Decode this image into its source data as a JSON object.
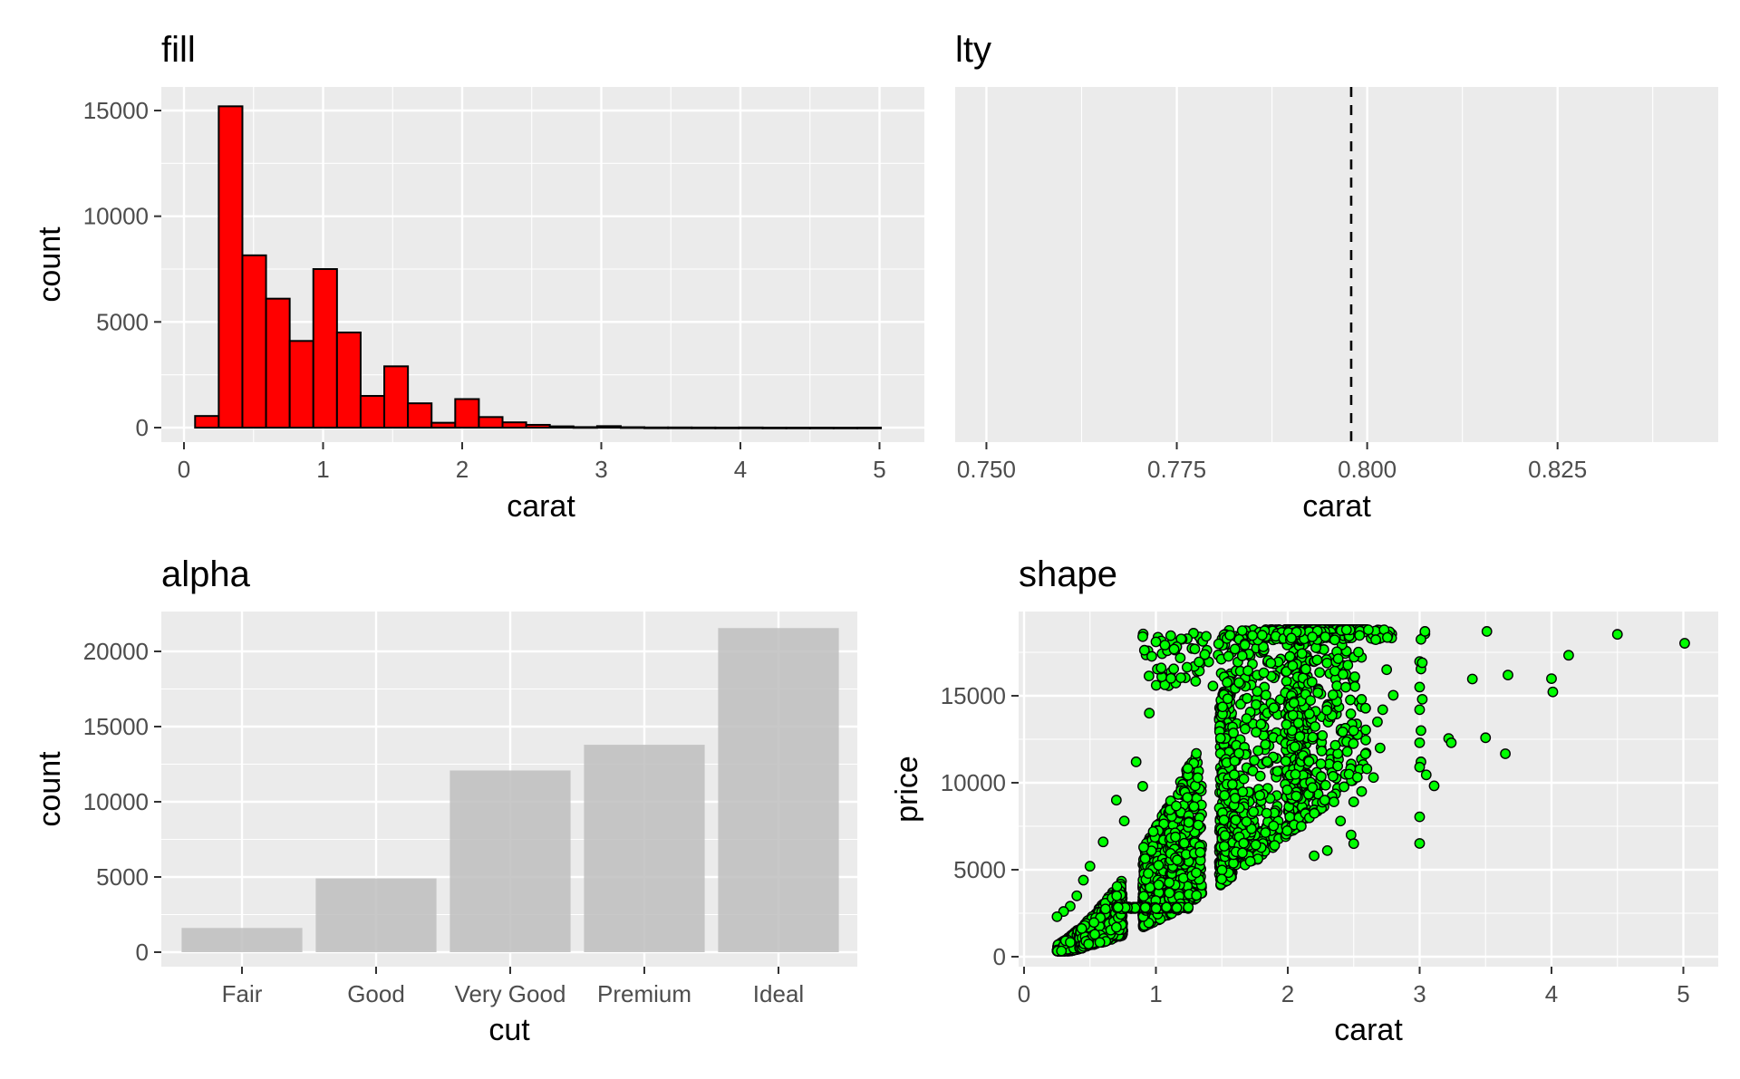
{
  "chart_data": [
    {
      "type": "bar",
      "title": "fill",
      "xlabel": "carat",
      "ylabel": "count",
      "xlim": [
        0,
        5.1
      ],
      "ylim": [
        0,
        15500
      ],
      "xticks": [
        "0",
        "1",
        "2",
        "3",
        "4",
        "5"
      ],
      "yticks": [
        "0",
        "5000",
        "10000",
        "15000"
      ],
      "grid": true,
      "bar_fill": "#ff0000",
      "bar_outline": "#000000",
      "bins": [
        {
          "x0": 0.08,
          "x1": 0.25,
          "count": 550
        },
        {
          "x0": 0.25,
          "x1": 0.42,
          "count": 15200
        },
        {
          "x0": 0.42,
          "x1": 0.59,
          "count": 8150
        },
        {
          "x0": 0.59,
          "x1": 0.76,
          "count": 6100
        },
        {
          "x0": 0.76,
          "x1": 0.93,
          "count": 4100
        },
        {
          "x0": 0.93,
          "x1": 1.1,
          "count": 7500
        },
        {
          "x0": 1.1,
          "x1": 1.27,
          "count": 4500
        },
        {
          "x0": 1.27,
          "x1": 1.44,
          "count": 1500
        },
        {
          "x0": 1.44,
          "x1": 1.61,
          "count": 2900
        },
        {
          "x0": 1.61,
          "x1": 1.78,
          "count": 1150
        },
        {
          "x0": 1.78,
          "x1": 1.95,
          "count": 230
        },
        {
          "x0": 1.95,
          "x1": 2.12,
          "count": 1350
        },
        {
          "x0": 2.12,
          "x1": 2.29,
          "count": 500
        },
        {
          "x0": 2.29,
          "x1": 2.46,
          "count": 250
        },
        {
          "x0": 2.46,
          "x1": 2.63,
          "count": 130
        },
        {
          "x0": 2.63,
          "x1": 2.8,
          "count": 60
        },
        {
          "x0": 2.8,
          "x1": 2.97,
          "count": 25
        },
        {
          "x0": 2.97,
          "x1": 3.14,
          "count": 70
        },
        {
          "x0": 3.14,
          "x1": 3.31,
          "count": 20
        },
        {
          "x0": 3.31,
          "x1": 3.48,
          "count": 8
        },
        {
          "x0": 3.48,
          "x1": 3.65,
          "count": 8
        },
        {
          "x0": 3.65,
          "x1": 3.82,
          "count": 5
        },
        {
          "x0": 3.82,
          "x1": 3.99,
          "count": 3
        },
        {
          "x0": 3.99,
          "x1": 4.16,
          "count": 6
        },
        {
          "x0": 4.16,
          "x1": 4.33,
          "count": 1
        },
        {
          "x0": 4.33,
          "x1": 4.5,
          "count": 1
        },
        {
          "x0": 4.5,
          "x1": 4.67,
          "count": 1
        },
        {
          "x0": 4.67,
          "x1": 4.84,
          "count": 0
        },
        {
          "x0": 4.84,
          "x1": 5.01,
          "count": 1
        }
      ]
    },
    {
      "type": "line",
      "title": "lty",
      "xlabel": "carat",
      "ylabel": "",
      "xlim": [
        0.7459,
        0.8461
      ],
      "xticks": [
        "0.750",
        "0.775",
        "0.800",
        "0.825"
      ],
      "grid": true,
      "vline": {
        "x": 0.7979,
        "linetype": "dashed",
        "color": "#000000"
      }
    },
    {
      "type": "bar",
      "title": "alpha",
      "xlabel": "cut",
      "ylabel": "count",
      "categories": [
        "Fair",
        "Good",
        "Very Good",
        "Premium",
        "Ideal"
      ],
      "values": [
        1610,
        4906,
        12082,
        13791,
        21551
      ],
      "ylim": [
        0,
        22630
      ],
      "yticks": [
        "0",
        "5000",
        "10000",
        "15000",
        "20000"
      ],
      "grid": true,
      "bar_fill": "#bebebe",
      "bar_alpha": 0.85
    },
    {
      "type": "scatter",
      "title": "shape",
      "xlabel": "carat",
      "ylabel": "price",
      "xlim": [
        0,
        5.2
      ],
      "ylim": [
        0,
        19600
      ],
      "xticks": [
        "0",
        "1",
        "2",
        "3",
        "4",
        "5"
      ],
      "yticks": [
        "0",
        "5000",
        "10000",
        "15000"
      ],
      "grid": true,
      "point_fill": "#00ff00",
      "point_outline": "#000000",
      "outliers": [
        [
          5.01,
          18018
        ],
        [
          4.5,
          18531
        ],
        [
          4.13,
          17329
        ],
        [
          4.01,
          15223
        ],
        [
          4.0,
          15984
        ],
        [
          3.67,
          16193
        ],
        [
          3.65,
          11668
        ],
        [
          3.51,
          18701
        ],
        [
          3.5,
          12587
        ],
        [
          3.4,
          15964
        ],
        [
          3.22,
          12545
        ],
        [
          3.24,
          12300
        ],
        [
          3.11,
          9823
        ],
        [
          3.04,
          18559
        ],
        [
          3.01,
          18242
        ],
        [
          3.0,
          16970
        ],
        [
          3.01,
          16538
        ],
        [
          3.0,
          15500
        ],
        [
          3.02,
          14800
        ],
        [
          3.0,
          14200
        ],
        [
          3.01,
          13000
        ],
        [
          3.0,
          12300
        ],
        [
          3.05,
          10453
        ],
        [
          3.01,
          11200
        ],
        [
          3.0,
          8040
        ],
        [
          3.0,
          6512
        ],
        [
          3.04,
          18700
        ],
        [
          3.0,
          10900
        ],
        [
          3.02,
          16900
        ],
        [
          2.8,
          15030
        ],
        [
          2.72,
          14200
        ],
        [
          2.75,
          16500
        ],
        [
          2.68,
          13500
        ],
        [
          2.7,
          12000
        ],
        [
          2.65,
          10300
        ],
        [
          2.56,
          9500
        ],
        [
          2.5,
          8900
        ],
        [
          2.6,
          10800
        ],
        [
          2.48,
          7000
        ],
        [
          2.5,
          6500
        ],
        [
          2.3,
          6100
        ],
        [
          2.2,
          5800
        ],
        [
          2.4,
          7800
        ],
        [
          2.35,
          8900
        ],
        [
          2.28,
          9000
        ],
        [
          0.9,
          18400
        ],
        [
          1.0,
          18100
        ],
        [
          1.04,
          16600
        ],
        [
          0.95,
          14000
        ],
        [
          0.85,
          11200
        ],
        [
          0.9,
          9800
        ],
        [
          0.7,
          9000
        ],
        [
          0.76,
          7800
        ],
        [
          0.6,
          6600
        ],
        [
          0.5,
          5200
        ],
        [
          0.45,
          4400
        ],
        [
          0.4,
          3500
        ],
        [
          0.35,
          2900
        ],
        [
          0.3,
          2600
        ],
        [
          0.25,
          2300
        ]
      ]
    }
  ]
}
